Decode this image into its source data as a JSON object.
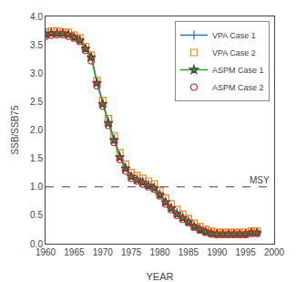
{
  "chart_data": {
    "type": "line",
    "xlabel": "YEAR",
    "ylabel": "SSB/SSB75",
    "xlim": [
      1960,
      2000
    ],
    "ylim": [
      0,
      4
    ],
    "xticks": [
      1960,
      1965,
      1970,
      1975,
      1980,
      1985,
      1990,
      1995,
      2000
    ],
    "yticks": [
      {
        "value": 0,
        "label": "0.0"
      },
      0.5,
      {
        "value": 1.0,
        "label": "1.0"
      },
      1.5,
      {
        "value": 2.0,
        "label": "2.0"
      },
      2.5,
      {
        "value": 3.0,
        "label": "3.0"
      },
      3.5,
      {
        "value": 4.0,
        "label": "4.0"
      }
    ],
    "grid": false,
    "legend": "upper right",
    "reference_lines": [
      {
        "y": 1.0,
        "label": "MSY",
        "line_style": "dashed"
      }
    ],
    "series": [
      {
        "name": "VPA Case 1",
        "type": "line",
        "marker": "plus",
        "line_style": "solid",
        "x": [
          1960,
          1961,
          1962,
          1963,
          1964,
          1965,
          1966,
          1967,
          1968,
          1969,
          1970,
          1971,
          1972,
          1973,
          1974,
          1975,
          1976,
          1977,
          1978,
          1979,
          1980,
          1981,
          1982,
          1983,
          1984,
          1985,
          1986,
          1987,
          1988,
          1989,
          1990,
          1991,
          1992,
          1993,
          1994,
          1995,
          1996,
          1997
        ],
        "values": [
          3.7,
          3.72,
          3.72,
          3.72,
          3.7,
          3.65,
          3.6,
          3.45,
          3.3,
          2.85,
          2.48,
          2.15,
          1.85,
          1.55,
          1.35,
          1.2,
          1.15,
          1.1,
          1.05,
          1.0,
          0.88,
          0.75,
          0.65,
          0.55,
          0.48,
          0.4,
          0.32,
          0.27,
          0.22,
          0.2,
          0.18,
          0.18,
          0.18,
          0.18,
          0.18,
          0.18,
          0.2,
          0.2
        ]
      },
      {
        "name": "VPA Case 2",
        "type": "scatter",
        "marker": "square-open",
        "x": [
          1960,
          1961,
          1962,
          1963,
          1964,
          1965,
          1966,
          1967,
          1968,
          1969,
          1970,
          1971,
          1972,
          1973,
          1974,
          1975,
          1976,
          1977,
          1978,
          1979,
          1980,
          1981,
          1982,
          1983,
          1984,
          1985,
          1986,
          1987,
          1988,
          1989,
          1990,
          1991,
          1992,
          1993,
          1994,
          1995,
          1996,
          1997
        ],
        "values": [
          3.72,
          3.74,
          3.74,
          3.72,
          3.72,
          3.67,
          3.62,
          3.47,
          3.32,
          2.87,
          2.52,
          2.2,
          1.9,
          1.6,
          1.4,
          1.25,
          1.2,
          1.15,
          1.1,
          1.05,
          0.93,
          0.8,
          0.7,
          0.6,
          0.52,
          0.44,
          0.36,
          0.3,
          0.25,
          0.22,
          0.2,
          0.2,
          0.2,
          0.2,
          0.2,
          0.2,
          0.22,
          0.22
        ]
      },
      {
        "name": "ASPM Case 1",
        "type": "line",
        "marker": "star",
        "line_style": "solid",
        "x": [
          1960,
          1961,
          1962,
          1963,
          1964,
          1965,
          1966,
          1967,
          1968,
          1969,
          1970,
          1971,
          1972,
          1973,
          1974,
          1975,
          1976,
          1977,
          1978,
          1979,
          1980,
          1981,
          1982,
          1983,
          1984,
          1985,
          1986,
          1987,
          1988,
          1989,
          1990,
          1991,
          1992,
          1993,
          1994,
          1995,
          1996,
          1997
        ],
        "values": [
          3.68,
          3.7,
          3.7,
          3.7,
          3.68,
          3.63,
          3.58,
          3.43,
          3.28,
          2.83,
          2.46,
          2.12,
          1.82,
          1.52,
          1.32,
          1.18,
          1.12,
          1.08,
          1.02,
          0.98,
          0.86,
          0.73,
          0.62,
          0.52,
          0.45,
          0.38,
          0.3,
          0.25,
          0.21,
          0.18,
          0.17,
          0.17,
          0.17,
          0.17,
          0.17,
          0.17,
          0.19,
          0.19
        ]
      },
      {
        "name": "ASPM Case 2",
        "type": "scatter",
        "marker": "circle-open",
        "x": [
          1960,
          1961,
          1962,
          1963,
          1964,
          1965,
          1966,
          1967,
          1968,
          1969,
          1970,
          1971,
          1972,
          1973,
          1974,
          1975,
          1976,
          1977,
          1978,
          1979,
          1980,
          1981,
          1982,
          1983,
          1984,
          1985,
          1986,
          1987,
          1988,
          1989,
          1990,
          1991,
          1992,
          1993,
          1994,
          1995,
          1996,
          1997
        ],
        "values": [
          3.65,
          3.67,
          3.68,
          3.68,
          3.65,
          3.62,
          3.56,
          3.4,
          3.22,
          2.78,
          2.42,
          2.08,
          1.78,
          1.48,
          1.28,
          1.15,
          1.1,
          1.05,
          1.0,
          0.96,
          0.84,
          0.7,
          0.6,
          0.5,
          0.43,
          0.37,
          0.29,
          0.24,
          0.2,
          0.17,
          0.16,
          0.16,
          0.16,
          0.16,
          0.16,
          0.16,
          0.18,
          0.18
        ]
      }
    ]
  }
}
